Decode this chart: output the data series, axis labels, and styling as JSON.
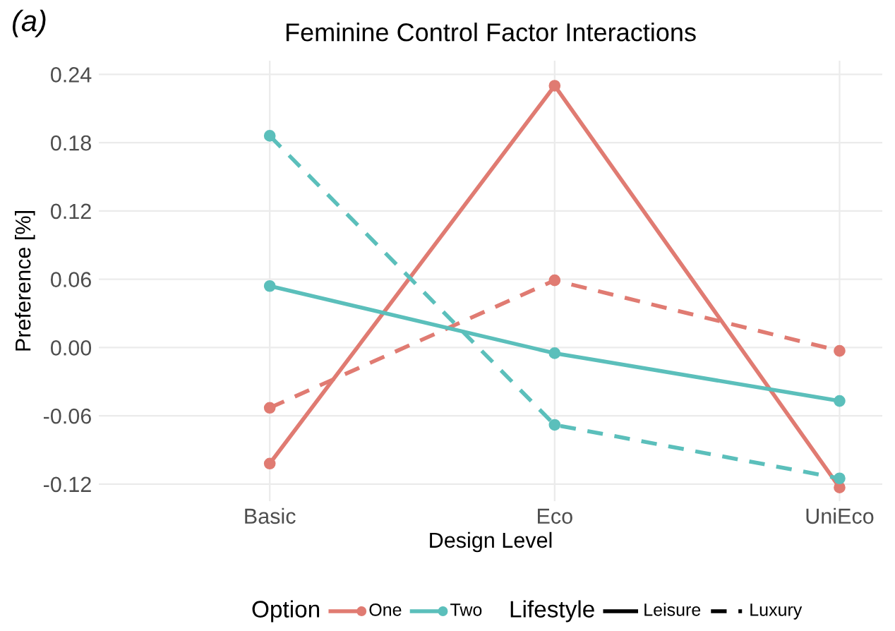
{
  "chart_data": {
    "type": "line",
    "title": "Feminine Control Factor Interactions",
    "xlabel": "Design Level",
    "ylabel": "Preference [%]",
    "categories": [
      "Basic",
      "Eco",
      "UniEco"
    ],
    "series": [
      {
        "name": "One",
        "color": "#e07b72",
        "line_style": "solid",
        "values": [
          -0.102,
          0.23,
          -0.123
        ]
      },
      {
        "color": "#e07b72",
        "line_style": "dashed",
        "values": [
          -0.053,
          0.059,
          -0.003
        ]
      },
      {
        "name": "Two",
        "color": "#5bbfbb",
        "line_style": "solid",
        "values": [
          0.054,
          -0.005,
          -0.047
        ]
      },
      {
        "color": "#5bbfbb",
        "line_style": "dashed",
        "values": [
          0.186,
          -0.068,
          -0.115
        ]
      }
    ],
    "ylim": [
      -0.135,
      0.252
    ],
    "yticks": [
      {
        "value": 0.24,
        "label": "0.24"
      },
      {
        "value": 0.18,
        "label": "0.18"
      },
      {
        "value": 0.12,
        "label": "0.12"
      },
      {
        "value": 0.06,
        "label": "0.06"
      },
      {
        "value": 0,
        "label": "0.00"
      },
      {
        "value": -0.06,
        "label": "-0.06"
      },
      {
        "value": -0.12,
        "label": "-0.12"
      }
    ],
    "marker": "circle",
    "grid": true,
    "legend": "bottom",
    "legend_title": "Option",
    "annotations": [
      "(a)",
      "Lifestyle",
      "Leisure",
      "Luxury"
    ]
  }
}
